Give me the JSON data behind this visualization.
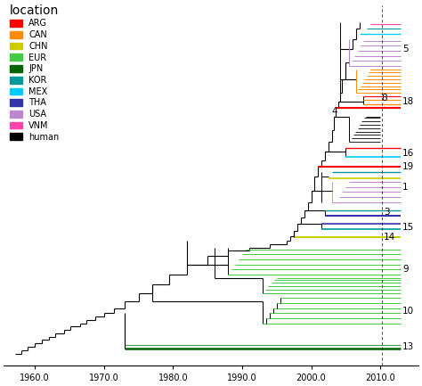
{
  "figsize": [
    4.74,
    4.33
  ],
  "dpi": 100,
  "xlim": [
    1955.5,
    2015.5
  ],
  "ylim": [
    -2,
    105
  ],
  "xticks": [
    1960.0,
    1970.0,
    1980.0,
    1990.0,
    2000.0,
    2010.0
  ],
  "colors": {
    "ARG": "#FF0000",
    "CAN": "#FF8C00",
    "CHN": "#CCCC00",
    "EUR": "#44CC44",
    "JPN": "#006400",
    "KOR": "#009999",
    "MEX": "#00CCFF",
    "THA": "#3333AA",
    "USA": "#BB88CC",
    "VNM": "#FF44AA",
    "human": "#000000"
  },
  "legend_title": "location",
  "legend_items": [
    "ARG",
    "CAN",
    "CHN",
    "EUR",
    "JPN",
    "KOR",
    "MEX",
    "THA",
    "USA",
    "VNM",
    "human"
  ],
  "dashed_line_x": 2010.3,
  "background": "#FFFFFF"
}
